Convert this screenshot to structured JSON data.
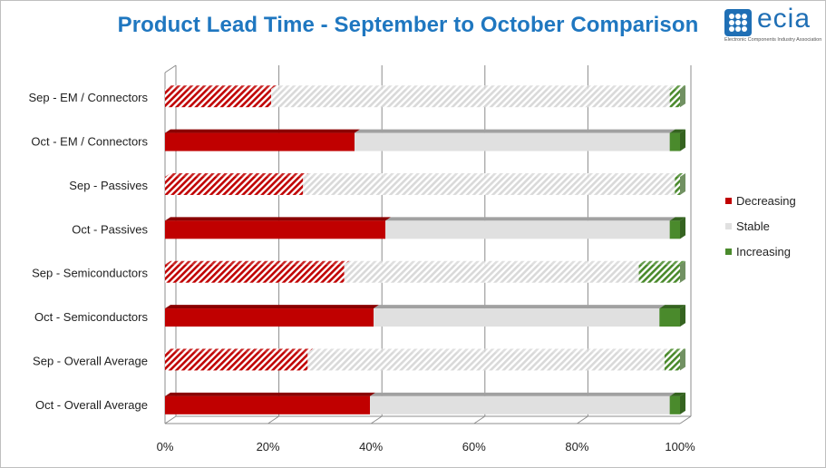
{
  "title": "Product Lead Time - September to October Comparison",
  "logo": {
    "text": "ecia",
    "subtitle": "Electronic Components Industry Association"
  },
  "chart_data": {
    "type": "bar",
    "orientation": "horizontal",
    "stacked": "percent",
    "title": "Product Lead Time - September to October Comparison",
    "categories": [
      "Sep - EM / Connectors",
      "Oct - EM / Connectors",
      "Sep - Passives",
      "Oct - Passives",
      "Sep - Semiconductors",
      "Oct - Semiconductors",
      "Sep - Overall Average",
      "Oct - Overall Average"
    ],
    "series": [
      {
        "name": "Decreasing",
        "values": [
          20.6,
          36.8,
          26.8,
          42.8,
          34.8,
          40.5,
          27.7,
          39.8
        ],
        "color": "#c00000"
      },
      {
        "name": "Stable",
        "values": [
          77.4,
          61.2,
          72.2,
          55.2,
          57.2,
          55.5,
          69.3,
          58.2
        ],
        "color": "#e0e0e0"
      },
      {
        "name": "Increasing",
        "values": [
          2.0,
          2.0,
          1.0,
          2.0,
          8.0,
          4.0,
          3.0,
          2.0
        ],
        "color": "#4a8a2c"
      }
    ],
    "x_ticks": [
      "0%",
      "20%",
      "40%",
      "60%",
      "80%",
      "100%"
    ],
    "xlim": [
      0,
      100
    ],
    "grid": true,
    "legend": "right",
    "note": "Sep bars hatched, Oct bars solid"
  }
}
